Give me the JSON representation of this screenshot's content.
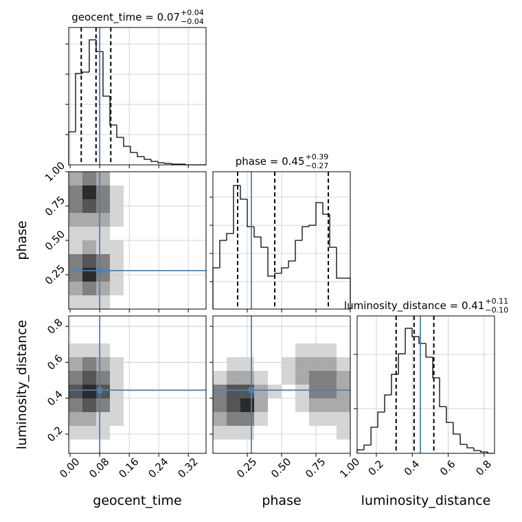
{
  "chart_data": [
    {
      "type": "histogram",
      "title": "geocent_time = 0.07",
      "title_sup": "+0.04",
      "title_sub": "−0.04",
      "bins": [
        -0.004,
        0.0146,
        0.0332,
        0.0518,
        0.0704,
        0.089,
        0.1076,
        0.1262,
        0.1448,
        0.1634,
        0.182,
        0.2006,
        0.2192,
        0.2378,
        0.2564,
        0.275,
        0.2936,
        0.3122,
        0.3308,
        0.3494,
        0.368
      ],
      "values": [
        48,
        133,
        135,
        182,
        165,
        100,
        58,
        40,
        27,
        18,
        12,
        8,
        5,
        3,
        2,
        1,
        1,
        0,
        0,
        0
      ],
      "color": "#000000",
      "xlim": [
        -0.004,
        0.368
      ],
      "ylim": [
        0,
        200
      ],
      "xticks": [
        0,
        0.08,
        0.16,
        0.24,
        0.32
      ],
      "yticks": [
        44,
        88,
        132,
        176
      ],
      "xtick_labels": false,
      "ytick_labels": false,
      "grid": true,
      "quantiles": [
        0.03,
        0.07,
        0.11
      ],
      "truth": 0.08,
      "truth_color": "#4682b4"
    },
    {
      "type": "hist2d",
      "ylabel": "phase",
      "x_edges": [
        -0.004,
        0.0332,
        0.0704,
        0.1076,
        0.1448,
        0.182,
        0.2192,
        0.2564,
        0.2936,
        0.3308,
        0.368
      ],
      "y_edges": [
        0,
        0.1,
        0.2,
        0.3,
        0.4,
        0.5,
        0.6,
        0.7,
        0.8,
        0.9,
        1
      ],
      "counts": [
        [
          1,
          1,
          1,
          0,
          0,
          0,
          0,
          0,
          0,
          0
        ],
        [
          2,
          3,
          2,
          1,
          0,
          0,
          0,
          0,
          0,
          0
        ],
        [
          3,
          5,
          3,
          1,
          0,
          0,
          0,
          0,
          0,
          0
        ],
        [
          3,
          4,
          3,
          1,
          0,
          0,
          0,
          0,
          0,
          0
        ],
        [
          1,
          2,
          1,
          1,
          0,
          0,
          0,
          0,
          0,
          0
        ],
        [
          1,
          1,
          1,
          0,
          0,
          0,
          0,
          0,
          0,
          0
        ],
        [
          2,
          2,
          2,
          1,
          0,
          0,
          0,
          0,
          0,
          0
        ],
        [
          3,
          4,
          3,
          1,
          0,
          0,
          0,
          0,
          0,
          0
        ],
        [
          3,
          5,
          3,
          1,
          0,
          0,
          0,
          0,
          0,
          0
        ],
        [
          2,
          3,
          2,
          0,
          0,
          0,
          0,
          0,
          0,
          0
        ]
      ],
      "xlim": [
        -0.004,
        0.368
      ],
      "ylim": [
        0,
        1
      ],
      "xticks": [
        0,
        0.08,
        0.16,
        0.24,
        0.32
      ],
      "yticks": [
        0.25,
        {
          "value": 0.5,
          "label": "0.50"
        },
        0.75,
        {
          "value": 1,
          "label": "1.00"
        }
      ],
      "xtick_labels": false,
      "ytick_labels": true,
      "grid": true,
      "truth_x": 0.08,
      "truth_y": 0.28,
      "truth_color": "#4682b4"
    },
    {
      "type": "histogram",
      "title": "phase = 0.45",
      "title_sup": "+0.39",
      "title_sub": "−0.27",
      "bins": [
        0,
        0.05,
        0.1,
        0.15,
        0.2,
        0.25,
        0.3,
        0.35,
        0.4,
        0.45,
        0.5,
        0.55,
        0.6,
        0.65,
        0.7,
        0.75,
        0.8,
        0.85,
        0.9,
        0.95,
        1
      ],
      "values": [
        60,
        100,
        110,
        180,
        160,
        120,
        105,
        90,
        48,
        52,
        60,
        70,
        100,
        120,
        122,
        155,
        138,
        90,
        45,
        45
      ],
      "color": "#000000",
      "xlim": [
        0,
        1
      ],
      "ylim": [
        0,
        200
      ],
      "xticks": [
        0.25,
        0.5,
        0.75,
        1
      ],
      "yticks": [
        40,
        81,
        122,
        163
      ],
      "xtick_labels": false,
      "ytick_labels": false,
      "grid": true,
      "quantiles": [
        0.18,
        0.45,
        0.84
      ],
      "truth": 0.28,
      "truth_color": "#4682b4"
    },
    {
      "type": "hist2d",
      "xlabel": "geocent_time",
      "ylabel": "luminosity_distance",
      "x_edges": [
        -0.004,
        0.0332,
        0.0704,
        0.1076,
        0.1448,
        0.182,
        0.2192,
        0.2564,
        0.2936,
        0.3308,
        0.368
      ],
      "y_edges": [
        0.093,
        0.1695,
        0.246,
        0.3225,
        0.399,
        0.4755,
        0.552,
        0.6285,
        0.705,
        0.7815,
        0.858
      ],
      "counts": [
        [
          0,
          0,
          0,
          0,
          0,
          0,
          0,
          0,
          0,
          0
        ],
        [
          1,
          1,
          1,
          0,
          0,
          0,
          0,
          0,
          0,
          0
        ],
        [
          2,
          2,
          1,
          1,
          0,
          0,
          0,
          0,
          0,
          0
        ],
        [
          3,
          4,
          3,
          1,
          0,
          0,
          0,
          0,
          0,
          0
        ],
        [
          4,
          5,
          4,
          1,
          0,
          0,
          0,
          0,
          0,
          0
        ],
        [
          3,
          4,
          3,
          1,
          0,
          0,
          0,
          0,
          0,
          0
        ],
        [
          2,
          3,
          2,
          1,
          0,
          0,
          0,
          0,
          0,
          0
        ],
        [
          1,
          1,
          1,
          0,
          0,
          0,
          0,
          0,
          0,
          0
        ],
        [
          0,
          0,
          0,
          0,
          0,
          0,
          0,
          0,
          0,
          0
        ],
        [
          0,
          0,
          0,
          0,
          0,
          0,
          0,
          0,
          0,
          0
        ]
      ],
      "xlim": [
        -0.004,
        0.368
      ],
      "ylim": [
        0.093,
        0.858
      ],
      "xticks": [
        {
          "value": 0,
          "label": "0.00"
        },
        0.08,
        0.16,
        0.24,
        0.32
      ],
      "yticks": [
        0.2,
        0.4,
        0.6,
        0.8
      ],
      "xtick_labels": true,
      "ytick_labels": true,
      "grid": true,
      "truth_x": 0.08,
      "truth_y": 0.445,
      "truth_color": "#4682b4"
    },
    {
      "type": "hist2d",
      "xlabel": "phase",
      "x_edges": [
        0,
        0.1,
        0.2,
        0.3,
        0.4,
        0.5,
        0.6,
        0.7,
        0.8,
        0.9,
        1
      ],
      "y_edges": [
        0.093,
        0.1695,
        0.246,
        0.3225,
        0.399,
        0.4755,
        0.552,
        0.6285,
        0.705,
        0.7815,
        0.858
      ],
      "counts": [
        [
          0,
          0,
          0,
          0,
          0,
          0,
          0,
          0,
          0,
          0
        ],
        [
          1,
          1,
          1,
          0,
          0,
          0,
          0,
          0,
          0,
          1
        ],
        [
          2,
          3,
          3,
          1,
          0,
          0,
          0,
          1,
          1,
          1
        ],
        [
          3,
          4,
          5,
          2,
          0,
          0,
          1,
          2,
          2,
          2
        ],
        [
          3,
          4,
          4,
          2,
          1,
          0,
          1,
          3,
          3,
          2
        ],
        [
          1,
          2,
          2,
          1,
          0,
          1,
          2,
          3,
          3,
          2
        ],
        [
          0,
          1,
          1,
          0,
          0,
          1,
          2,
          2,
          2,
          1
        ],
        [
          0,
          0,
          0,
          0,
          0,
          0,
          1,
          1,
          1,
          0
        ],
        [
          0,
          0,
          0,
          0,
          0,
          0,
          0,
          0,
          0,
          0
        ],
        [
          0,
          0,
          0,
          0,
          0,
          0,
          0,
          0,
          0,
          0
        ]
      ],
      "xlim": [
        0,
        1
      ],
      "ylim": [
        0.093,
        0.858
      ],
      "xticks": [
        0.25,
        {
          "value": 0.5,
          "label": "0.50"
        },
        0.75,
        {
          "value": 1,
          "label": "1.00"
        }
      ],
      "yticks": [
        0.2,
        0.4,
        0.6,
        0.8
      ],
      "xtick_labels": true,
      "ytick_labels": false,
      "grid": true,
      "truth_x": 0.28,
      "truth_y": 0.445,
      "truth_color": "#4682b4"
    },
    {
      "type": "histogram",
      "title": "luminosity_distance = 0.41",
      "title_sup": "+0.11",
      "title_sub": "−0.10",
      "xlabel": "luminosity_distance",
      "bins": [
        0.093,
        0.131,
        0.17,
        0.208,
        0.246,
        0.284,
        0.323,
        0.361,
        0.399,
        0.437,
        0.476,
        0.514,
        0.552,
        0.59,
        0.628,
        0.667,
        0.705,
        0.743,
        0.781,
        0.82,
        0.858
      ],
      "values": [
        5,
        12,
        38,
        60,
        85,
        115,
        145,
        182,
        170,
        160,
        140,
        110,
        68,
        45,
        28,
        13,
        8,
        4,
        2,
        0
      ],
      "color": "#000000",
      "xlim": [
        0.093,
        0.858
      ],
      "ylim": [
        0,
        200
      ],
      "xticks": [
        0.2,
        0.4,
        0.6,
        0.8
      ],
      "yticks": [
        65,
        144
      ],
      "xtick_labels": true,
      "ytick_labels": false,
      "grid": true,
      "quantiles": [
        0.31,
        0.41,
        0.52
      ],
      "truth": 0.445,
      "truth_color": "#4682b4"
    }
  ]
}
